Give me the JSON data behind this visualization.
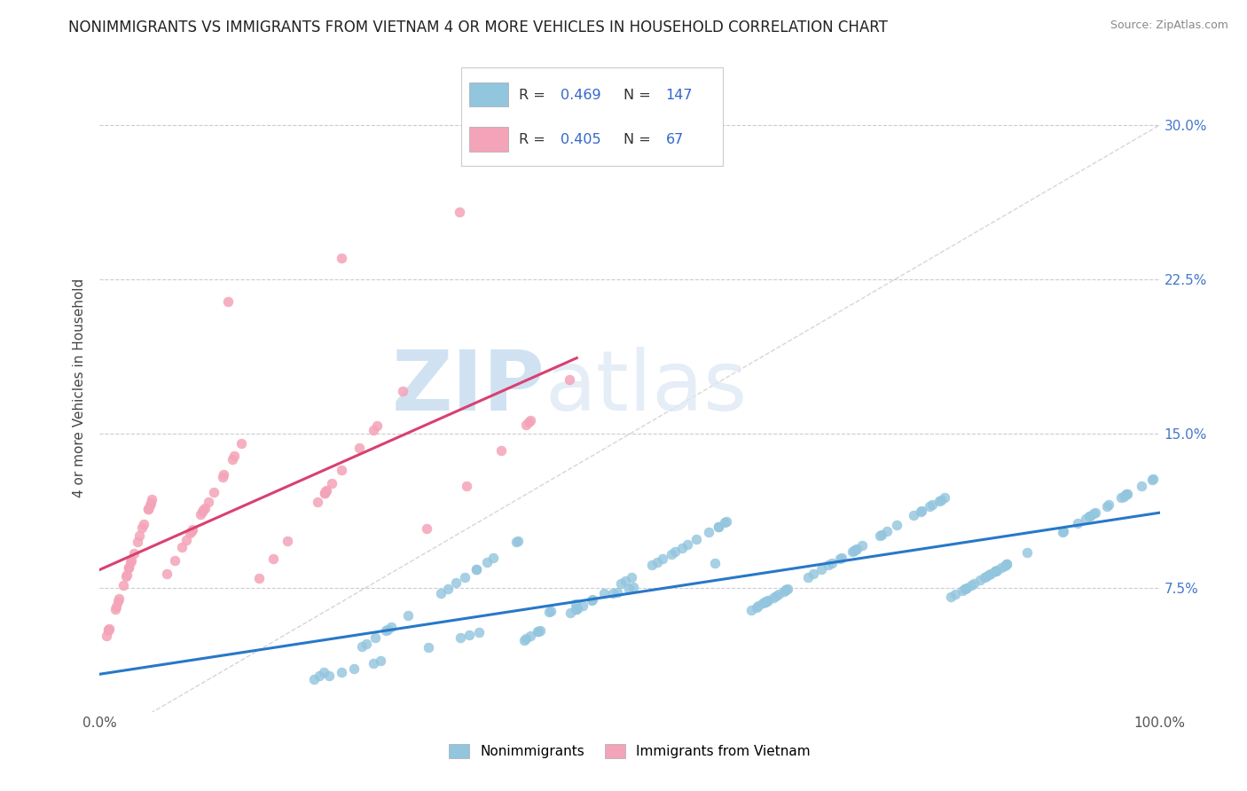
{
  "title": "NONIMMIGRANTS VS IMMIGRANTS FROM VIETNAM 4 OR MORE VEHICLES IN HOUSEHOLD CORRELATION CHART",
  "source": "Source: ZipAtlas.com",
  "ylabel": "4 or more Vehicles in Household",
  "yticks": [
    7.5,
    15.0,
    22.5,
    30.0
  ],
  "ytick_labels": [
    "7.5%",
    "15.0%",
    "22.5%",
    "30.0%"
  ],
  "xlim": [
    0,
    100
  ],
  "ylim": [
    1.5,
    33
  ],
  "blue_R": 0.469,
  "blue_N": 147,
  "pink_R": 0.405,
  "pink_N": 67,
  "blue_color": "#92c5de",
  "pink_color": "#f4a4b8",
  "blue_line_color": "#2878c8",
  "pink_line_color": "#d94070",
  "watermark_zip": "ZIP",
  "watermark_atlas": "atlas",
  "background_color": "#ffffff",
  "legend_R_color": "#3366cc",
  "legend_N_color": "#3366cc"
}
